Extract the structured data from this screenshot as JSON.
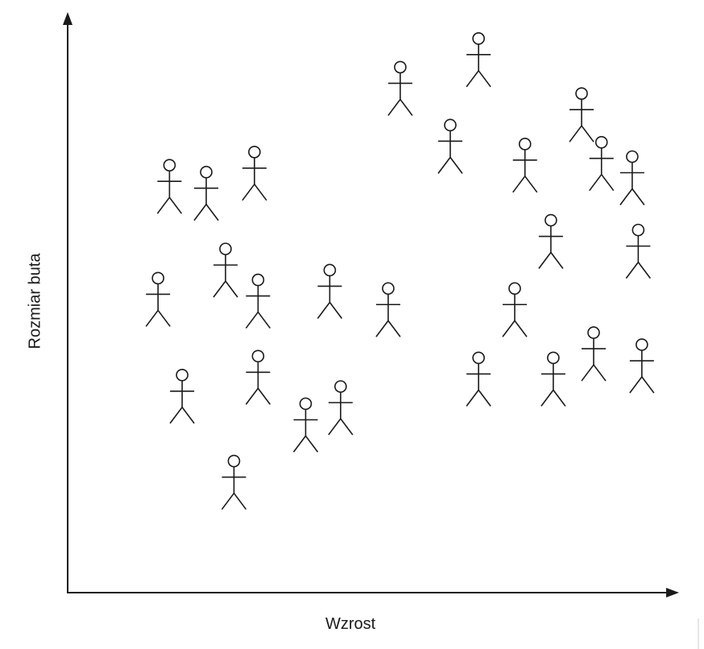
{
  "axes": {
    "x_label": "Wzrost",
    "y_label": "Rozmiar buta",
    "color": "#1a1a1a"
  },
  "figures_icon": "person-stick-figure-icon",
  "chart_data": {
    "type": "scatter",
    "title": "",
    "xlabel": "Wzrost",
    "ylabel": "Rozmiar buta",
    "grid": false,
    "series": [
      {
        "points": [
          [
            16.9,
            70.2
          ],
          [
            23.0,
            69.0
          ],
          [
            31.0,
            72.5
          ],
          [
            15.0,
            50.5
          ],
          [
            26.2,
            55.6
          ],
          [
            31.6,
            50.2
          ],
          [
            19.0,
            33.6
          ],
          [
            31.6,
            36.9
          ],
          [
            27.6,
            18.6
          ],
          [
            39.5,
            28.6
          ],
          [
            45.3,
            31.6
          ],
          [
            43.5,
            51.9
          ],
          [
            53.2,
            48.7
          ],
          [
            55.2,
            87.3
          ],
          [
            63.5,
            77.2
          ],
          [
            68.2,
            92.3
          ],
          [
            75.9,
            73.9
          ],
          [
            85.3,
            82.7
          ],
          [
            88.6,
            74.2
          ],
          [
            93.7,
            71.7
          ],
          [
            80.2,
            60.6
          ],
          [
            94.7,
            58.9
          ],
          [
            74.2,
            48.7
          ],
          [
            87.3,
            41.0
          ],
          [
            95.3,
            38.9
          ],
          [
            68.2,
            36.6
          ],
          [
            80.6,
            36.6
          ]
        ]
      }
    ]
  }
}
